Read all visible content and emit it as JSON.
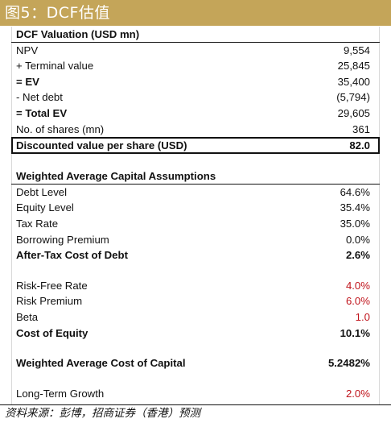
{
  "banner": {
    "title": "图5：DCF估值"
  },
  "valuation": {
    "header": "DCF Valuation (USD mn)",
    "rows": [
      {
        "label": "NPV",
        "value": "9,554"
      },
      {
        "label": "+ Terminal value",
        "value": "25,845"
      },
      {
        "label": "= EV",
        "value": "35,400"
      },
      {
        "label": "- Net debt",
        "value": "(5,794)"
      },
      {
        "label": "= Total EV",
        "value": "29,605"
      },
      {
        "label": "No. of shares (mn)",
        "value": "361"
      }
    ],
    "per_share": {
      "label": "Discounted value per share (USD)",
      "value": "82.0"
    }
  },
  "wacc": {
    "header": "Weighted Average Capital Assumptions",
    "debt": [
      {
        "label": "Debt Level",
        "value": "64.6%"
      },
      {
        "label": "Equity Level",
        "value": "35.4%"
      },
      {
        "label": "Tax Rate",
        "value": "35.0%"
      },
      {
        "label": "Borrowing Premium",
        "value": "0.0%"
      },
      {
        "label": "After-Tax Cost of Debt",
        "value": "2.6%"
      }
    ],
    "equity": [
      {
        "label": "Risk-Free Rate",
        "value": "4.0%"
      },
      {
        "label": "Risk Premium",
        "value": "6.0%"
      },
      {
        "label": "Beta",
        "value": "1.0"
      },
      {
        "label": "Cost of Equity",
        "value": "10.1%"
      }
    ],
    "total": {
      "label": "Weighted Average Cost of Capital",
      "value": "5.2482%"
    },
    "growth": {
      "label": "Long-Term Growth",
      "value": "2.0%"
    }
  },
  "source": "资料来源：彭博，招商证券（香港）预测",
  "colors": {
    "banner": "#c4a559",
    "input_red": "#c0141c"
  }
}
